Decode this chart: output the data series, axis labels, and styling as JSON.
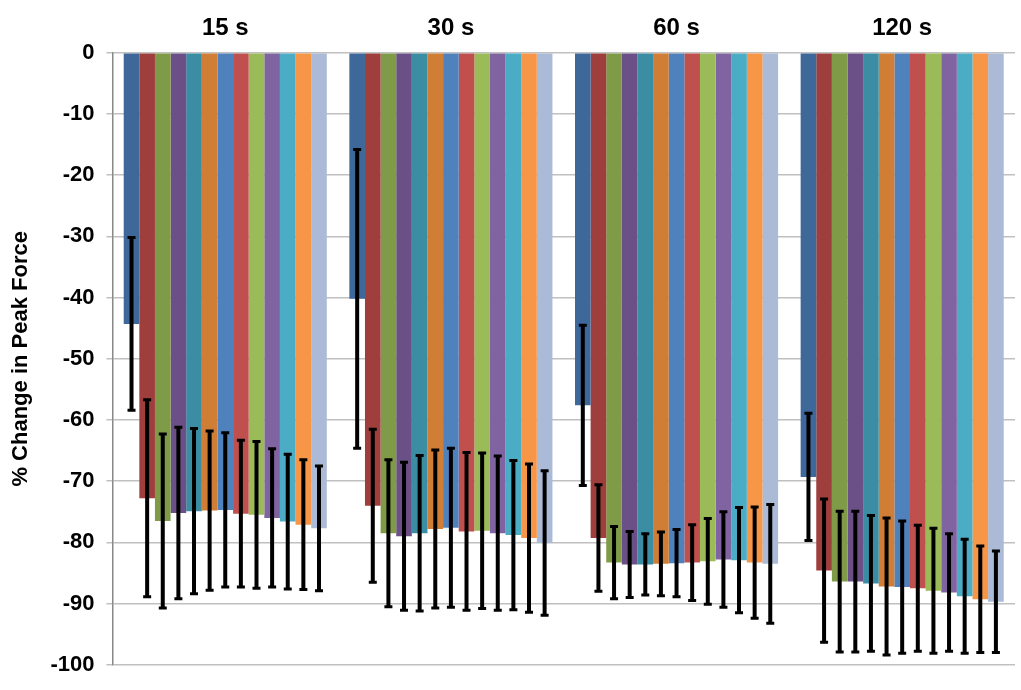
{
  "chart_data": {
    "type": "bar",
    "ylabel": "% Change in Peak Force",
    "categories": [
      "15 s",
      "30 s",
      "60 s",
      "120 s"
    ],
    "ylim": [
      -100,
      0
    ],
    "yticks": [
      0,
      -10,
      -20,
      -30,
      -40,
      -50,
      -60,
      -70,
      -80,
      -90,
      -100
    ],
    "grid": "y",
    "legend": false,
    "series": [
      {
        "color": "#3f689a",
        "values": [
          -44.3,
          -40.2,
          -57.6,
          -69.3
        ],
        "errors": [
          14.1,
          24.4,
          13.1,
          10.4
        ]
      },
      {
        "color": "#9e3f3d",
        "values": [
          -72.8,
          -74.0,
          -79.3,
          -84.6
        ],
        "errors": [
          16.1,
          12.5,
          8.7,
          11.7
        ]
      },
      {
        "color": "#809b48",
        "values": [
          -76.5,
          -78.5,
          -83.3,
          -86.4
        ],
        "errors": [
          14.2,
          12.0,
          5.9,
          11.5
        ]
      },
      {
        "color": "#6a5087",
        "values": [
          -75.2,
          -79.0,
          -83.6,
          -86.4
        ],
        "errors": [
          14.0,
          12.1,
          5.4,
          11.5
        ]
      },
      {
        "color": "#3a8da3",
        "values": [
          -74.9,
          -78.5,
          -83.6,
          -86.7
        ],
        "errors": [
          13.5,
          12.7,
          5.0,
          11.1
        ]
      },
      {
        "color": "#d07d35",
        "values": [
          -74.8,
          -77.8,
          -83.5,
          -87.2
        ],
        "errors": [
          13.0,
          12.9,
          5.2,
          11.2
        ]
      },
      {
        "color": "#4f81bd",
        "values": [
          -74.7,
          -77.6,
          -83.4,
          -87.3
        ],
        "errors": [
          12.6,
          13.0,
          5.5,
          10.8
        ]
      },
      {
        "color": "#c0504d",
        "values": [
          -75.3,
          -78.2,
          -83.3,
          -87.5
        ],
        "errors": [
          12.0,
          12.9,
          6.2,
          10.3
        ]
      },
      {
        "color": "#9bbb59",
        "values": [
          -75.5,
          -78.1,
          -83.1,
          -87.9
        ],
        "errors": [
          12.0,
          12.7,
          7.0,
          10.2
        ]
      },
      {
        "color": "#8064a2",
        "values": [
          -76.0,
          -78.5,
          -82.8,
          -88.2
        ],
        "errors": [
          11.3,
          12.6,
          7.8,
          9.6
        ]
      },
      {
        "color": "#4bacc6",
        "values": [
          -76.6,
          -78.8,
          -82.9,
          -88.8
        ],
        "errors": [
          11.0,
          12.2,
          8.6,
          9.3
        ]
      },
      {
        "color": "#f79646",
        "values": [
          -77.1,
          -79.3,
          -83.3,
          -89.3
        ],
        "errors": [
          10.6,
          12.1,
          9.1,
          8.7
        ]
      },
      {
        "color": "#aabad7",
        "values": [
          -77.7,
          -80.1,
          -83.5,
          -89.7
        ],
        "errors": [
          10.2,
          11.8,
          9.7,
          8.3
        ]
      }
    ]
  }
}
